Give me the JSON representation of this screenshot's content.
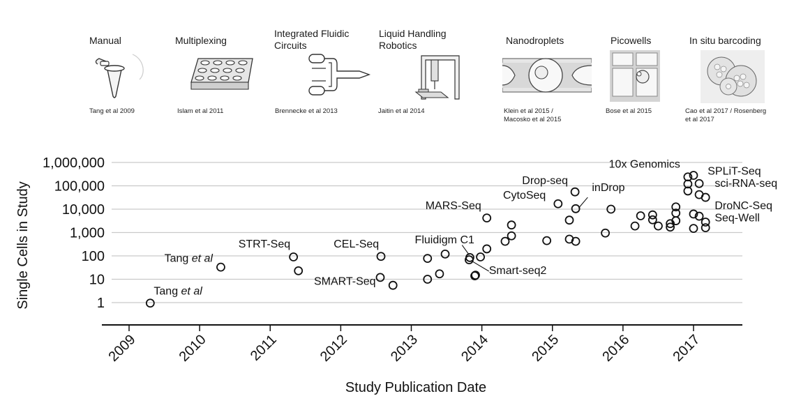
{
  "technologies": [
    {
      "title": "Manual",
      "citation": "Tang et al 2009",
      "icon": "tube-icon"
    },
    {
      "title": "Multiplexing",
      "citation": "Islam et al 2011",
      "icon": "well-plate-icon"
    },
    {
      "title": "Integrated Fluidic Circuits",
      "citation": "Brennecke et al 2013",
      "icon": "fluidic-circuit-icon"
    },
    {
      "title": "Liquid Handling Robotics",
      "citation": "Jaitin et al 2014",
      "icon": "robot-icon"
    },
    {
      "title": "Nanodroplets",
      "citation": "Klein et al 2015 / Macosko et al 2015",
      "icon": "droplet-icon"
    },
    {
      "title": "Picowells",
      "citation": "Bose et al 2015",
      "icon": "picowell-icon"
    },
    {
      "title": "In situ barcoding",
      "citation": "Cao et al 2017 / Rosenberg et al 2017",
      "icon": "cell-cluster-icon"
    }
  ],
  "chart_data": {
    "type": "scatter",
    "xlabel": "Study Publication Date",
    "ylabel": "Single Cells in Study",
    "x_scale": "date",
    "y_scale": "log",
    "xlim": [
      2008.75,
      2017.55
    ],
    "ylim": [
      0.5,
      1500000
    ],
    "x_ticks": [
      "2009",
      "2010",
      "2011",
      "2012",
      "2013",
      "2014",
      "2015",
      "2016",
      "2017"
    ],
    "y_ticks": [
      {
        "value": 1,
        "label": "1"
      },
      {
        "value": 10,
        "label": "10"
      },
      {
        "value": 100,
        "label": "100"
      },
      {
        "value": 1000,
        "label": "1,000"
      },
      {
        "value": 10000,
        "label": "10,000"
      },
      {
        "value": 100000,
        "label": "100,000"
      },
      {
        "value": 1000000,
        "label": "1,000,000"
      }
    ],
    "grid": true,
    "points": [
      {
        "x": 2009.3,
        "y": 0.95
      },
      {
        "x": 2010.3,
        "y": 33
      },
      {
        "x": 2011.33,
        "y": 90
      },
      {
        "x": 2011.4,
        "y": 23
      },
      {
        "x": 2012.57,
        "y": 95
      },
      {
        "x": 2012.56,
        "y": 12
      },
      {
        "x": 2012.74,
        "y": 5.5
      },
      {
        "x": 2013.23,
        "y": 78
      },
      {
        "x": 2013.23,
        "y": 10
      },
      {
        "x": 2013.4,
        "y": 17
      },
      {
        "x": 2013.48,
        "y": 120
      },
      {
        "x": 2013.83,
        "y": 85
      },
      {
        "x": 2013.82,
        "y": 68
      },
      {
        "x": 2013.9,
        "y": 14
      },
      {
        "x": 2013.91,
        "y": 15
      },
      {
        "x": 2013.98,
        "y": 90
      },
      {
        "x": 2014.07,
        "y": 200
      },
      {
        "x": 2014.07,
        "y": 4200
      },
      {
        "x": 2014.33,
        "y": 420
      },
      {
        "x": 2014.42,
        "y": 2100
      },
      {
        "x": 2014.42,
        "y": 720
      },
      {
        "x": 2014.92,
        "y": 450
      },
      {
        "x": 2015.08,
        "y": 17000
      },
      {
        "x": 2015.24,
        "y": 3400
      },
      {
        "x": 2015.24,
        "y": 520
      },
      {
        "x": 2015.32,
        "y": 55000
      },
      {
        "x": 2015.33,
        "y": 10500
      },
      {
        "x": 2015.33,
        "y": 420
      },
      {
        "x": 2015.75,
        "y": 950
      },
      {
        "x": 2015.83,
        "y": 10000
      },
      {
        "x": 2016.17,
        "y": 1900
      },
      {
        "x": 2016.25,
        "y": 5200
      },
      {
        "x": 2016.42,
        "y": 5700
      },
      {
        "x": 2016.42,
        "y": 3500
      },
      {
        "x": 2016.5,
        "y": 1900
      },
      {
        "x": 2016.67,
        "y": 2400
      },
      {
        "x": 2016.67,
        "y": 1700
      },
      {
        "x": 2016.75,
        "y": 12500
      },
      {
        "x": 2016.75,
        "y": 6800
      },
      {
        "x": 2016.75,
        "y": 3200
      },
      {
        "x": 2016.92,
        "y": 240000
      },
      {
        "x": 2016.92,
        "y": 120000
      },
      {
        "x": 2016.92,
        "y": 60000
      },
      {
        "x": 2017.0,
        "y": 280000
      },
      {
        "x": 2017.08,
        "y": 125000
      },
      {
        "x": 2017.08,
        "y": 42000
      },
      {
        "x": 2017.17,
        "y": 32000
      },
      {
        "x": 2017.0,
        "y": 6200
      },
      {
        "x": 2017.08,
        "y": 5000
      },
      {
        "x": 2017.17,
        "y": 2800
      },
      {
        "x": 2017.0,
        "y": 1500
      },
      {
        "x": 2017.17,
        "y": 1600
      }
    ],
    "annotations": [
      {
        "text": "Tang et al",
        "x": 2009.35,
        "y": 2.2
      },
      {
        "text": "Tang et al",
        "x": 2009.5,
        "y": 55
      },
      {
        "text": "STRT-Seq",
        "x": 2010.55,
        "y": 230
      },
      {
        "text": "CEL-Seq",
        "x": 2011.9,
        "y": 230
      },
      {
        "text": "SMART-Seq",
        "x": 2011.62,
        "y": 5.8
      },
      {
        "text": "Fluidigm C1",
        "x": 2013.05,
        "y": 350
      },
      {
        "text": "Smart-seq2",
        "x": 2014.1,
        "y": 17
      },
      {
        "text": "MARS-Seq",
        "x": 2013.2,
        "y": 10000
      },
      {
        "text": "CytoSeq",
        "x": 2014.3,
        "y": 28000
      },
      {
        "text": "Drop-seq",
        "x": 2014.57,
        "y": 120000
      },
      {
        "text": "inDrop",
        "x": 2015.56,
        "y": 60000
      },
      {
        "text": "10x Genomics",
        "x": 2015.8,
        "y": 600000
      },
      {
        "text": "SPLiT-Seq",
        "x": 2017.2,
        "y": 300000
      },
      {
        "text": "sci-RNA-seq",
        "x": 2017.3,
        "y": 90000
      },
      {
        "text": "DroNC-Seq",
        "x": 2017.3,
        "y": 10000
      },
      {
        "text": "Seq-Well",
        "x": 2017.3,
        "y": 3000
      }
    ]
  }
}
